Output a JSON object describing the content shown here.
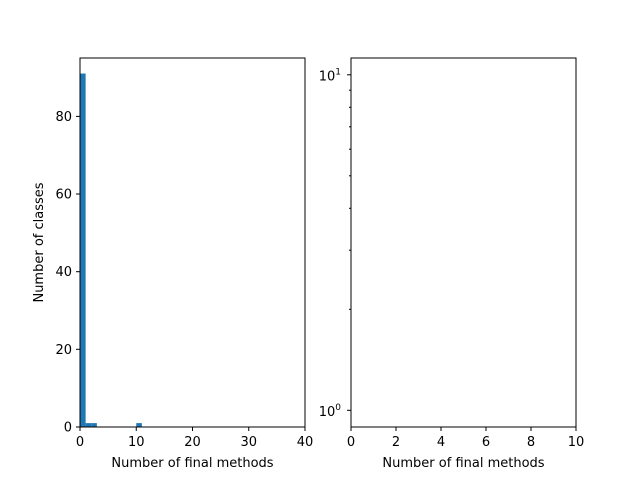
{
  "chart_data": [
    {
      "type": "bar",
      "xlabel": "Number of final methods",
      "ylabel": "Number of classes",
      "xlim": [
        0,
        40
      ],
      "ylim": [
        0,
        95
      ],
      "xticks": [
        "0",
        "10",
        "20",
        "30",
        "40"
      ],
      "yticks": [
        "0",
        "20",
        "40",
        "60",
        "80"
      ],
      "color": "#1f77b4",
      "bins": [
        {
          "x0": 0,
          "x1": 1,
          "value": 91
        },
        {
          "x0": 1,
          "x1": 2,
          "value": 1
        },
        {
          "x0": 2,
          "x1": 3,
          "value": 1
        },
        {
          "x0": 10,
          "x1": 11,
          "value": 1
        }
      ]
    },
    {
      "type": "bar",
      "xlabel": "Number of final methods",
      "ylabel": "",
      "yscale": "log",
      "xlim": [
        0,
        10
      ],
      "ylim": [
        0.9,
        11
      ],
      "xticks": [
        "0",
        "2",
        "4",
        "6",
        "8",
        "10"
      ],
      "yticks": [
        {
          "base": "10",
          "exp": "0"
        },
        {
          "base": "10",
          "exp": "1"
        }
      ],
      "bins": []
    }
  ]
}
